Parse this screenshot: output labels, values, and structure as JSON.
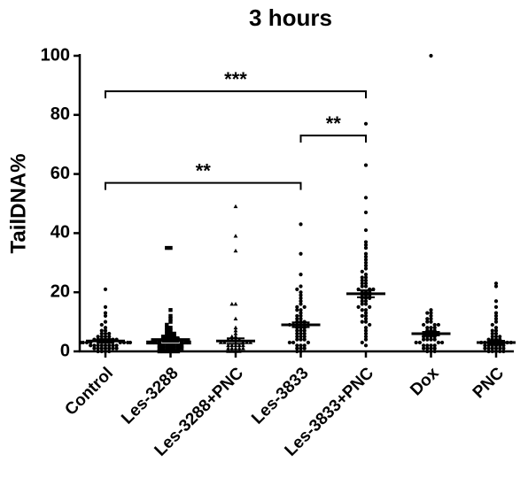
{
  "chart_data": {
    "type": "scatter",
    "title": "3 hours",
    "ylabel": "TailDNA%",
    "xlabel": "",
    "ylim": [
      0,
      100
    ],
    "yticks": [
      0,
      20,
      40,
      60,
      80,
      100
    ],
    "categories": [
      "Control",
      "Les-3288",
      "Les-3288+PNC",
      "Les-3833",
      "Les-3833+PNC",
      "Dox",
      "PNC"
    ],
    "markers": [
      "circle",
      "square",
      "triangle",
      "circle",
      "circle",
      "circle",
      "circle"
    ],
    "means": [
      3.5,
      4.0,
      3.5,
      9.0,
      19.5,
      6.0,
      3.0
    ],
    "sem": [
      0.6,
      0.8,
      0.9,
      0.8,
      1.2,
      0.6,
      0.6
    ],
    "points": [
      [
        21,
        15,
        13,
        12,
        10,
        9,
        8,
        7,
        7,
        6,
        6,
        6,
        5,
        5,
        5,
        5,
        4,
        4,
        4,
        4,
        4,
        4,
        4,
        3,
        3,
        3,
        3,
        3,
        3,
        3,
        3,
        2,
        2,
        2,
        2,
        2,
        2,
        2,
        2,
        1,
        1,
        1,
        1,
        1,
        1,
        1,
        0,
        0,
        0,
        0
      ],
      [
        35,
        35,
        14,
        12,
        11,
        10,
        9,
        8,
        8,
        7,
        7,
        6,
        6,
        6,
        5,
        5,
        5,
        5,
        4,
        4,
        4,
        4,
        4,
        3,
        3,
        3,
        3,
        3,
        3,
        3,
        2,
        2,
        2,
        2,
        2,
        2,
        2,
        1,
        1,
        1,
        1,
        1,
        1,
        1,
        0,
        0,
        0,
        0,
        0,
        0
      ],
      [
        49,
        39,
        34,
        16,
        16,
        11,
        8,
        7,
        6,
        5,
        5,
        4,
        4,
        4,
        4,
        3,
        3,
        3,
        3,
        3,
        2,
        2,
        2,
        2,
        2,
        1,
        1,
        1,
        1,
        1,
        0,
        0,
        0,
        0
      ],
      [
        43,
        33,
        26,
        22,
        21,
        20,
        19,
        18,
        17,
        16,
        15,
        15,
        14,
        14,
        13,
        12,
        12,
        11,
        11,
        10,
        10,
        10,
        9,
        9,
        9,
        8,
        8,
        8,
        7,
        7,
        7,
        6,
        6,
        6,
        5,
        5,
        5,
        4,
        4,
        4,
        3,
        3,
        3,
        2,
        2,
        2,
        1,
        1,
        1,
        0,
        0
      ],
      [
        77,
        63,
        52,
        47,
        41,
        37,
        36,
        35,
        33,
        32,
        31,
        30,
        29,
        28,
        27,
        26,
        25,
        25,
        24,
        24,
        23,
        23,
        22,
        22,
        21,
        21,
        21,
        20,
        20,
        20,
        19,
        19,
        19,
        18,
        18,
        18,
        17,
        17,
        16,
        16,
        15,
        15,
        14,
        14,
        13,
        12,
        12,
        11,
        10,
        10,
        9,
        8,
        7,
        6,
        5,
        4,
        3,
        2
      ],
      [
        100,
        14,
        13,
        13,
        12,
        11,
        11,
        10,
        10,
        9,
        9,
        9,
        8,
        8,
        8,
        7,
        7,
        7,
        6,
        6,
        6,
        6,
        5,
        5,
        5,
        5,
        4,
        4,
        4,
        4,
        3,
        3,
        3,
        3,
        2,
        2,
        2,
        2,
        1,
        1,
        1,
        1,
        0,
        0,
        0
      ],
      [
        23,
        22,
        17,
        15,
        13,
        12,
        11,
        10,
        9,
        8,
        7,
        7,
        6,
        6,
        5,
        5,
        5,
        4,
        4,
        4,
        4,
        3,
        3,
        3,
        3,
        3,
        2,
        2,
        2,
        2,
        2,
        2,
        1,
        1,
        1,
        1,
        1,
        1,
        0,
        0,
        0,
        0,
        0
      ]
    ],
    "brackets": [
      {
        "from": 0,
        "to": 4,
        "y": 88,
        "label": "***"
      },
      {
        "from": 3,
        "to": 4,
        "y": 73,
        "label": "**"
      },
      {
        "from": 0,
        "to": 3,
        "y": 57,
        "label": "**"
      }
    ],
    "grid": false,
    "legend": "none"
  }
}
